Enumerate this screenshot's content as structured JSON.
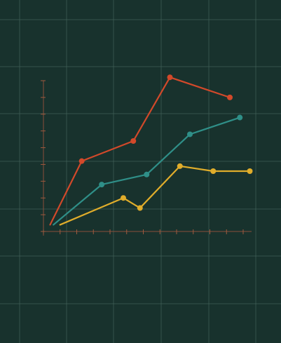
{
  "colors": {
    "background": "#18322d",
    "grid": "#3f5e56",
    "axis": "#8a4f3a",
    "tick": "#a05a3e"
  },
  "chart_data": {
    "type": "line",
    "title": "",
    "xlabel": "",
    "ylabel": "",
    "grid": true,
    "legend": "none",
    "xlim": [
      0,
      12
    ],
    "ylim": [
      0,
      9
    ],
    "x_ticks": [
      0,
      1,
      2,
      3,
      4,
      5,
      6,
      7,
      8,
      9,
      10,
      11,
      12
    ],
    "y_ticks": [
      0,
      1,
      2,
      3,
      4,
      5,
      6,
      7,
      8,
      9
    ],
    "series": [
      {
        "color": "#d2492a",
        "points": [
          [
            0.4,
            0.4
          ],
          [
            2.3,
            4.2
          ],
          [
            5.4,
            5.4
          ],
          [
            7.6,
            9.2
          ],
          [
            11.2,
            8.0
          ]
        ]
      },
      {
        "color": "#2f8f88",
        "points": [
          [
            0.6,
            0.4
          ],
          [
            3.5,
            2.8
          ],
          [
            6.2,
            3.4
          ],
          [
            8.8,
            5.8
          ],
          [
            11.8,
            6.8
          ]
        ]
      },
      {
        "color": "#e0ad2b",
        "points": [
          [
            1.0,
            0.4
          ],
          [
            4.8,
            2.0
          ],
          [
            5.8,
            1.4
          ],
          [
            8.2,
            3.9
          ],
          [
            10.2,
            3.6
          ],
          [
            12.4,
            3.6
          ]
        ]
      }
    ]
  }
}
